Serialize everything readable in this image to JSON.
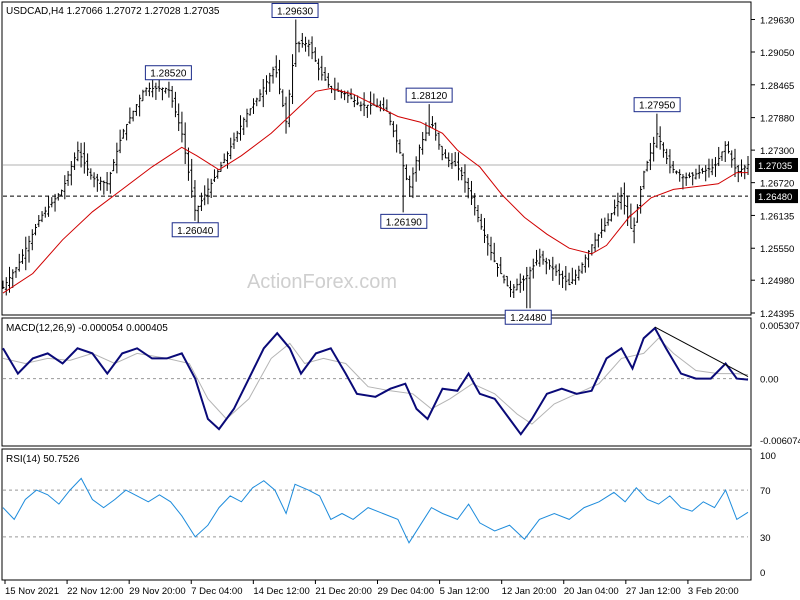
{
  "chart_data": {
    "type": "ohlc",
    "symbol_header": "USDCAD,H4  1.27066 1.27072 1.27028 1.27035",
    "watermark": "ActionForex.com",
    "colors": {
      "price": "#000000",
      "ma": "#d00000",
      "macd": "#0a0a78",
      "signal": "#b4b4b4",
      "rsi": "#1e8cdc",
      "grid": "#999999",
      "current_price_label_bg": "#000000"
    },
    "price_panel": {
      "ylim": [
        1.24395,
        1.29835
      ],
      "y_ticks": [
        1.2963,
        1.2905,
        1.28465,
        1.2788,
        1.273,
        1.2672,
        1.26135,
        1.2555,
        1.2498,
        1.24395
      ],
      "y_tick_labels": [
        "1.29630",
        "1.29050",
        "1.28465",
        "1.27880",
        "1.27300",
        "1.26720",
        "1.26135",
        "1.25550",
        "1.24980",
        "1.24395"
      ],
      "current_price": 1.27035,
      "current_price_label": "1.27035",
      "support_level": 1.2648,
      "support_label": "1.26480",
      "annotations": [
        {
          "label": "1.29630",
          "value": 1.2963,
          "x": 0.392
        },
        {
          "label": "1.28520",
          "value": 1.2852,
          "x": 0.222
        },
        {
          "label": "1.26040",
          "value": 1.2604,
          "x": 0.258
        },
        {
          "label": "1.28120",
          "value": 1.2812,
          "x": 0.572
        },
        {
          "label": "1.26190",
          "value": 1.2619,
          "x": 0.538
        },
        {
          "label": "1.24480",
          "value": 1.2448,
          "x": 0.705
        },
        {
          "label": "1.27950",
          "value": 1.2795,
          "x": 0.878
        }
      ],
      "close_path": [
        [
          0.0,
          1.2485
        ],
        [
          0.02,
          1.2525
        ],
        [
          0.05,
          1.261
        ],
        [
          0.08,
          1.266
        ],
        [
          0.1,
          1.273
        ],
        [
          0.12,
          1.268
        ],
        [
          0.14,
          1.267
        ],
        [
          0.16,
          1.276
        ],
        [
          0.19,
          1.284
        ],
        [
          0.222,
          1.284
        ],
        [
          0.24,
          1.276
        ],
        [
          0.258,
          1.262
        ],
        [
          0.275,
          1.266
        ],
        [
          0.3,
          1.272
        ],
        [
          0.325,
          1.279
        ],
        [
          0.345,
          1.283
        ],
        [
          0.365,
          1.288
        ],
        [
          0.38,
          1.278
        ],
        [
          0.392,
          1.292
        ],
        [
          0.41,
          1.292
        ],
        [
          0.425,
          1.287
        ],
        [
          0.44,
          1.284
        ],
        [
          0.46,
          1.283
        ],
        [
          0.48,
          1.281
        ],
        [
          0.5,
          1.281
        ],
        [
          0.515,
          1.28
        ],
        [
          0.53,
          1.274
        ],
        [
          0.545,
          1.266
        ],
        [
          0.56,
          1.274
        ],
        [
          0.575,
          1.278
        ],
        [
          0.59,
          1.272
        ],
        [
          0.61,
          1.27
        ],
        [
          0.625,
          1.266
        ],
        [
          0.64,
          1.26
        ],
        [
          0.66,
          1.253
        ],
        [
          0.68,
          1.248
        ],
        [
          0.7,
          1.25
        ],
        [
          0.72,
          1.254
        ],
        [
          0.745,
          1.251
        ],
        [
          0.76,
          1.249
        ],
        [
          0.775,
          1.252
        ],
        [
          0.79,
          1.256
        ],
        [
          0.81,
          1.26
        ],
        [
          0.83,
          1.265
        ],
        [
          0.845,
          1.258
        ],
        [
          0.86,
          1.269
        ],
        [
          0.878,
          1.276
        ],
        [
          0.895,
          1.27
        ],
        [
          0.915,
          1.268
        ],
        [
          0.935,
          1.269
        ],
        [
          0.955,
          1.27
        ],
        [
          0.97,
          1.274
        ],
        [
          0.985,
          1.269
        ],
        [
          1.0,
          1.2704
        ]
      ],
      "ma_path": [
        [
          0.0,
          1.2475
        ],
        [
          0.04,
          1.251
        ],
        [
          0.08,
          1.257
        ],
        [
          0.12,
          1.262
        ],
        [
          0.16,
          1.266
        ],
        [
          0.2,
          1.27
        ],
        [
          0.24,
          1.2735
        ],
        [
          0.26,
          1.272
        ],
        [
          0.29,
          1.2695
        ],
        [
          0.32,
          1.272
        ],
        [
          0.36,
          1.276
        ],
        [
          0.392,
          1.28
        ],
        [
          0.42,
          1.2835
        ],
        [
          0.44,
          1.284
        ],
        [
          0.47,
          1.283
        ],
        [
          0.5,
          1.281
        ],
        [
          0.53,
          1.279
        ],
        [
          0.56,
          1.278
        ],
        [
          0.59,
          1.276
        ],
        [
          0.61,
          1.273
        ],
        [
          0.64,
          1.27
        ],
        [
          0.67,
          1.265
        ],
        [
          0.7,
          1.261
        ],
        [
          0.73,
          1.258
        ],
        [
          0.76,
          1.2555
        ],
        [
          0.79,
          1.2545
        ],
        [
          0.81,
          1.256
        ],
        [
          0.84,
          1.261
        ],
        [
          0.87,
          1.2645
        ],
        [
          0.9,
          1.266
        ],
        [
          0.93,
          1.2665
        ],
        [
          0.96,
          1.267
        ],
        [
          0.985,
          1.269
        ],
        [
          1.0,
          1.269
        ]
      ]
    },
    "macd_panel": {
      "title": "MACD(12,26,9) -0.000054 0.000405",
      "ylim": [
        -0.006074,
        0.005307
      ],
      "y_ticks": [
        0.005307,
        0.0,
        -0.006074
      ],
      "y_tick_labels": [
        "0.005307",
        "0.00",
        "-0.006074"
      ],
      "macd_path": [
        [
          0.0,
          0.003
        ],
        [
          0.02,
          0.0005
        ],
        [
          0.04,
          0.002
        ],
        [
          0.06,
          0.0025
        ],
        [
          0.08,
          0.0015
        ],
        [
          0.1,
          0.003
        ],
        [
          0.12,
          0.0025
        ],
        [
          0.14,
          0.0005
        ],
        [
          0.16,
          0.0025
        ],
        [
          0.18,
          0.003
        ],
        [
          0.2,
          0.002
        ],
        [
          0.22,
          0.002
        ],
        [
          0.24,
          0.0025
        ],
        [
          0.258,
          0.0
        ],
        [
          0.275,
          -0.004
        ],
        [
          0.29,
          -0.005
        ],
        [
          0.31,
          -0.003
        ],
        [
          0.33,
          0.0
        ],
        [
          0.35,
          0.003
        ],
        [
          0.368,
          0.0045
        ],
        [
          0.385,
          0.003
        ],
        [
          0.4,
          0.0005
        ],
        [
          0.42,
          0.0025
        ],
        [
          0.44,
          0.003
        ],
        [
          0.46,
          0.0005
        ],
        [
          0.475,
          -0.0015
        ],
        [
          0.5,
          -0.0018
        ],
        [
          0.52,
          -0.001
        ],
        [
          0.54,
          -0.0005
        ],
        [
          0.555,
          -0.003
        ],
        [
          0.57,
          -0.004
        ],
        [
          0.59,
          -0.001
        ],
        [
          0.61,
          -0.0012
        ],
        [
          0.625,
          0.0005
        ],
        [
          0.64,
          -0.0015
        ],
        [
          0.66,
          -0.002
        ],
        [
          0.68,
          -0.004
        ],
        [
          0.695,
          -0.0055
        ],
        [
          0.71,
          -0.004
        ],
        [
          0.73,
          -0.0015
        ],
        [
          0.75,
          -0.001
        ],
        [
          0.77,
          -0.0015
        ],
        [
          0.79,
          -0.0012
        ],
        [
          0.81,
          0.002
        ],
        [
          0.83,
          0.003
        ],
        [
          0.845,
          0.001
        ],
        [
          0.86,
          0.004
        ],
        [
          0.875,
          0.005
        ],
        [
          0.89,
          0.003
        ],
        [
          0.91,
          0.0005
        ],
        [
          0.93,
          0.0
        ],
        [
          0.95,
          0.0
        ],
        [
          0.97,
          0.0015
        ],
        [
          0.985,
          0.0
        ],
        [
          1.0,
          -0.0001
        ]
      ],
      "signal_path": [
        [
          0.0,
          0.002
        ],
        [
          0.03,
          0.0015
        ],
        [
          0.06,
          0.002
        ],
        [
          0.09,
          0.0018
        ],
        [
          0.12,
          0.0025
        ],
        [
          0.15,
          0.0015
        ],
        [
          0.18,
          0.0025
        ],
        [
          0.22,
          0.002
        ],
        [
          0.25,
          0.0015
        ],
        [
          0.275,
          -0.002
        ],
        [
          0.3,
          -0.004
        ],
        [
          0.33,
          -0.002
        ],
        [
          0.36,
          0.002
        ],
        [
          0.385,
          0.0035
        ],
        [
          0.405,
          0.0015
        ],
        [
          0.43,
          0.002
        ],
        [
          0.46,
          0.0015
        ],
        [
          0.49,
          -0.0008
        ],
        [
          0.52,
          -0.0012
        ],
        [
          0.55,
          -0.0015
        ],
        [
          0.575,
          -0.003
        ],
        [
          0.6,
          -0.002
        ],
        [
          0.63,
          -0.0005
        ],
        [
          0.66,
          -0.0015
        ],
        [
          0.69,
          -0.0035
        ],
        [
          0.71,
          -0.0045
        ],
        [
          0.74,
          -0.0025
        ],
        [
          0.77,
          -0.0015
        ],
        [
          0.8,
          -0.0005
        ],
        [
          0.83,
          0.002
        ],
        [
          0.86,
          0.0025
        ],
        [
          0.88,
          0.004
        ],
        [
          0.9,
          0.0025
        ],
        [
          0.93,
          0.0008
        ],
        [
          0.96,
          0.0005
        ],
        [
          0.985,
          0.0005
        ],
        [
          1.0,
          0.0004
        ]
      ],
      "trendline": [
        [
          0.875,
          0.0051
        ],
        [
          1.0,
          0.0002
        ]
      ]
    },
    "rsi_panel": {
      "title": "RSI(14) 50.7526",
      "ylim": [
        0,
        100
      ],
      "y_ticks": [
        100,
        70,
        30,
        0
      ],
      "y_tick_labels": [
        "100",
        "70",
        "30",
        "0"
      ],
      "levels": [
        70,
        30
      ],
      "rsi_path": [
        [
          0.0,
          55
        ],
        [
          0.015,
          45
        ],
        [
          0.03,
          62
        ],
        [
          0.045,
          70
        ],
        [
          0.06,
          66
        ],
        [
          0.075,
          58
        ],
        [
          0.09,
          70
        ],
        [
          0.105,
          80
        ],
        [
          0.12,
          62
        ],
        [
          0.135,
          55
        ],
        [
          0.15,
          62
        ],
        [
          0.165,
          70
        ],
        [
          0.18,
          65
        ],
        [
          0.195,
          60
        ],
        [
          0.21,
          66
        ],
        [
          0.225,
          60
        ],
        [
          0.24,
          48
        ],
        [
          0.258,
          30
        ],
        [
          0.275,
          40
        ],
        [
          0.29,
          55
        ],
        [
          0.305,
          65
        ],
        [
          0.32,
          60
        ],
        [
          0.335,
          72
        ],
        [
          0.35,
          78
        ],
        [
          0.365,
          70
        ],
        [
          0.38,
          50
        ],
        [
          0.392,
          75
        ],
        [
          0.41,
          70
        ],
        [
          0.425,
          65
        ],
        [
          0.44,
          45
        ],
        [
          0.455,
          50
        ],
        [
          0.47,
          45
        ],
        [
          0.49,
          55
        ],
        [
          0.51,
          50
        ],
        [
          0.53,
          45
        ],
        [
          0.545,
          25
        ],
        [
          0.56,
          40
        ],
        [
          0.575,
          55
        ],
        [
          0.59,
          50
        ],
        [
          0.61,
          45
        ],
        [
          0.625,
          58
        ],
        [
          0.64,
          42
        ],
        [
          0.66,
          35
        ],
        [
          0.68,
          40
        ],
        [
          0.7,
          28
        ],
        [
          0.72,
          45
        ],
        [
          0.74,
          50
        ],
        [
          0.76,
          45
        ],
        [
          0.78,
          55
        ],
        [
          0.8,
          60
        ],
        [
          0.82,
          68
        ],
        [
          0.835,
          60
        ],
        [
          0.85,
          72
        ],
        [
          0.865,
          62
        ],
        [
          0.88,
          58
        ],
        [
          0.895,
          65
        ],
        [
          0.91,
          55
        ],
        [
          0.925,
          52
        ],
        [
          0.94,
          60
        ],
        [
          0.955,
          55
        ],
        [
          0.97,
          70
        ],
        [
          0.985,
          45
        ],
        [
          1.0,
          51
        ]
      ]
    },
    "x_labels": [
      "15 Nov 2021",
      "22 Nov 12:00",
      "29 Nov 20:00",
      "7 Dec 04:00",
      "14 Dec 12:00",
      "21 Dec 20:00",
      "29 Dec 04:00",
      "5 Jan 12:00",
      "12 Jan 20:00",
      "20 Jan 04:00",
      "27 Jan 12:00",
      "3 Feb 20:00"
    ]
  }
}
